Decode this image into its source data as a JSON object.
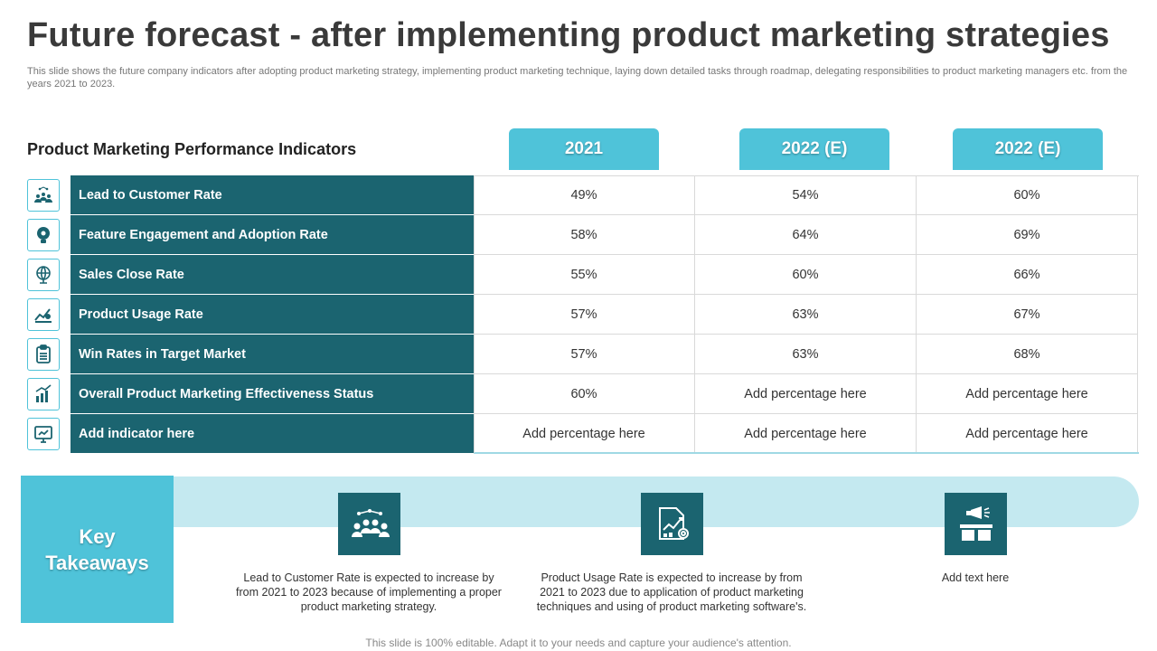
{
  "title": "Future forecast - after implementing product marketing strategies",
  "subtitle": "This slide shows the future company indicators after adopting product marketing strategy, implementing product marketing technique, laying down detailed tasks through roadmap, delegating responsibilities to product marketing managers etc. from the years 2021 to 2023.",
  "table": {
    "heading": "Product Marketing Performance Indicators",
    "columns": [
      "2021",
      "2022 (E)",
      "2022 (E)"
    ],
    "rows": [
      {
        "icon": "people-network-icon",
        "label": "Lead to Customer Rate",
        "values": [
          "49%",
          "54%",
          "60%"
        ]
      },
      {
        "icon": "lightbulb-gear-icon",
        "label": "Feature Engagement and Adoption Rate",
        "values": [
          "58%",
          "64%",
          "69%"
        ]
      },
      {
        "icon": "globe-target-icon",
        "label": "Sales Close Rate",
        "values": [
          "55%",
          "60%",
          "66%"
        ]
      },
      {
        "icon": "product-chart-icon",
        "label": "Product Usage Rate",
        "values": [
          "57%",
          "63%",
          "67%"
        ]
      },
      {
        "icon": "clipboard-icon",
        "label": "Win Rates in Target Market",
        "values": [
          "57%",
          "63%",
          "68%"
        ]
      },
      {
        "icon": "growth-people-icon",
        "label": "Overall Product Marketing Effectiveness Status",
        "values": [
          "60%",
          "Add percentage here",
          "Add percentage here"
        ]
      },
      {
        "icon": "monitor-icon",
        "label": "Add  indicator here",
        "values": [
          "Add percentage here",
          "Add percentage here",
          "Add percentage here"
        ]
      }
    ]
  },
  "takeaways": {
    "label_line1": "Key",
    "label_line2": "Takeaways",
    "items": [
      {
        "icon": "team-network-icon",
        "text": "Lead to Customer Rate is expected to increase by from 2021 to 2023 because of implementing a proper product marketing strategy."
      },
      {
        "icon": "report-gear-icon",
        "text": "Product Usage Rate is expected to increase by from 2021 to 2023 due to application of product marketing techniques and using of product marketing software's."
      },
      {
        "icon": "megaphone-box-icon",
        "text": "Add text here"
      }
    ]
  },
  "footer": "This slide is 100% editable. Adapt it to your needs and capture your audience's attention.",
  "colors": {
    "teal_dark": "#1b6470",
    "teal_light": "#4fc3d9",
    "band": "#c4e9f0"
  }
}
